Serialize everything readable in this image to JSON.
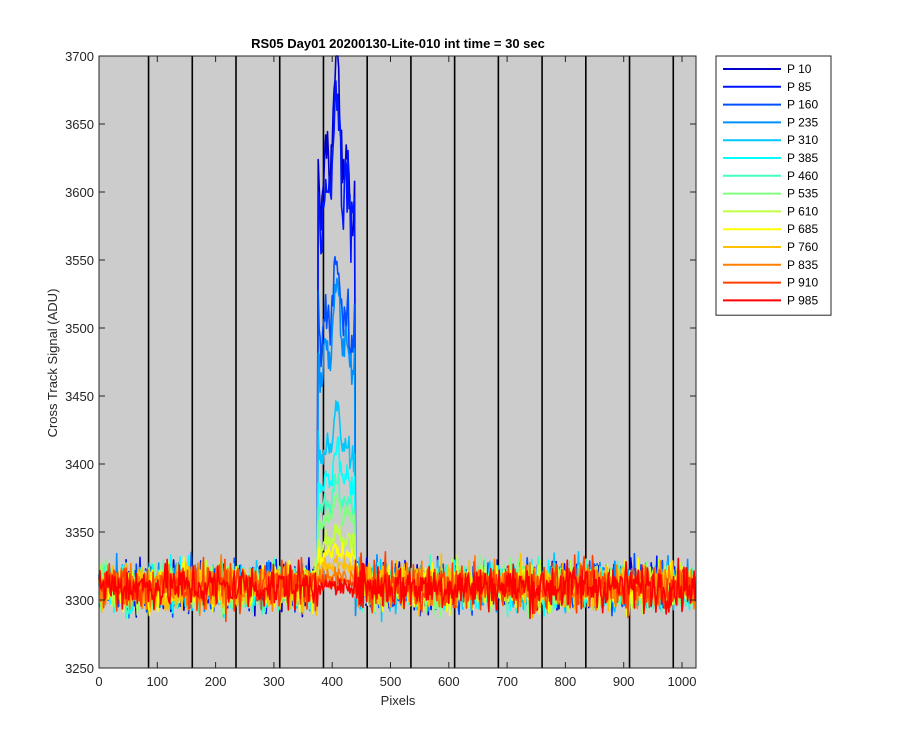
{
  "chart_data": {
    "type": "line",
    "title": "RS05 Day01 20200130-Lite-010 int time = 30 sec",
    "xlabel": "Pixels",
    "ylabel": "Cross Track Signal (ADU)",
    "xlim": [
      0,
      1024
    ],
    "ylim": [
      3250,
      3700
    ],
    "xticks": [
      0,
      100,
      200,
      300,
      400,
      500,
      600,
      700,
      800,
      900,
      1000
    ],
    "yticks": [
      3250,
      3300,
      3350,
      3400,
      3450,
      3500,
      3550,
      3600,
      3650,
      3700
    ],
    "vertical_lines_x": [
      85,
      160,
      235,
      310,
      385,
      460,
      535,
      610,
      685,
      760,
      835,
      910,
      985
    ],
    "background_color": "#cccccc",
    "legend_position": "outside-right-top",
    "baseline_level": 3310,
    "baseline_noise_range": [
      3275,
      3340
    ],
    "signal_region_x": [
      375,
      440
    ],
    "series": [
      {
        "name": "P 10",
        "color": "#0000c8",
        "peak_level": 3640
      },
      {
        "name": "P 85",
        "color": "#0014ff",
        "peak_level": 3620
      },
      {
        "name": "P 160",
        "color": "#0050ff",
        "peak_level": 3520
      },
      {
        "name": "P 235",
        "color": "#0090ff",
        "peak_level": 3495
      },
      {
        "name": "P 310",
        "color": "#00c8ff",
        "peak_level": 3420
      },
      {
        "name": "P 385",
        "color": "#00ffff",
        "peak_level": 3395
      },
      {
        "name": "P 460",
        "color": "#40ffc0",
        "peak_level": 3375
      },
      {
        "name": "P 535",
        "color": "#80ff80",
        "peak_level": 3365
      },
      {
        "name": "P 610",
        "color": "#c0ff40",
        "peak_level": 3345
      },
      {
        "name": "P 685",
        "color": "#ffff00",
        "peak_level": 3335
      },
      {
        "name": "P 760",
        "color": "#ffc000",
        "peak_level": 3325
      },
      {
        "name": "P 835",
        "color": "#ff8000",
        "peak_level": 3318
      },
      {
        "name": "P 910",
        "color": "#ff4000",
        "peak_level": 3312
      },
      {
        "name": "P 985",
        "color": "#ff0000",
        "peak_level": 3310
      }
    ]
  }
}
